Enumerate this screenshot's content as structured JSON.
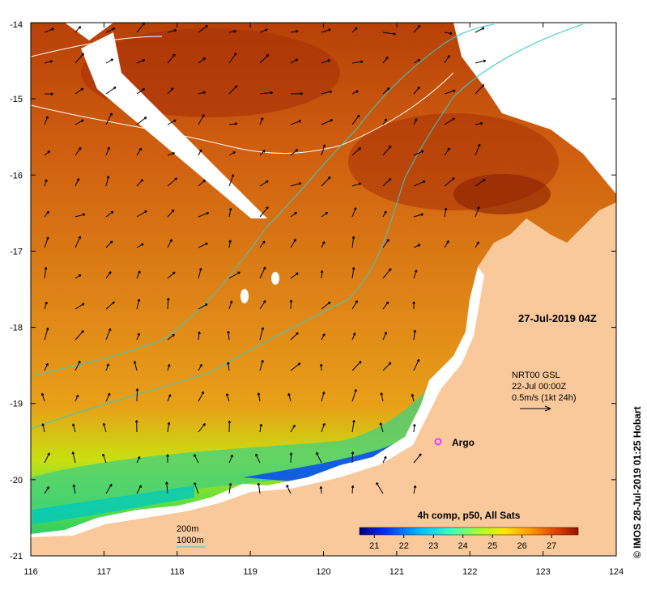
{
  "map": {
    "lon_ticks": [
      "116",
      "117",
      "118",
      "119",
      "120",
      "121",
      "122",
      "123",
      "124"
    ],
    "lat_ticks": [
      "-14",
      "-15",
      "-16",
      "-17",
      "-18",
      "-19",
      "-20",
      "-21"
    ],
    "lon_range": [
      116,
      124
    ],
    "lat_range": [
      -21,
      -14
    ],
    "timestamp_label": "27-Jul-2019 04Z",
    "current_source": {
      "line1": "NRT00 GSL",
      "line2": "22-Jul 00:00Z",
      "line3": "0.5m/s (1kt 24h)"
    },
    "argo_label": "Argo",
    "argo_marker_color": "#e040ff",
    "isobaths": [
      {
        "label": "200m",
        "color": "#ffffff"
      },
      {
        "label": "1000m",
        "color": "#33cccc"
      }
    ],
    "land_color": "#f9c89b",
    "colorbar": {
      "title": "4h comp, p50, All Sats",
      "ticks": [
        "21",
        "22",
        "23",
        "24",
        "25",
        "26",
        "27"
      ],
      "range": [
        20.5,
        27.9
      ],
      "colors": [
        "#00007f",
        "#0040ff",
        "#00bfff",
        "#40ffbf",
        "#7fff40",
        "#d0ff00",
        "#ffe000",
        "#ff9000",
        "#e05000",
        "#a01000"
      ]
    },
    "credit": "© IMOS 28-Jul-2019 01:25 Hobart"
  }
}
